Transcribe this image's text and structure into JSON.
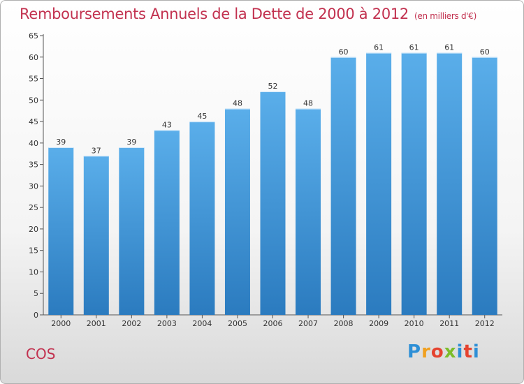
{
  "title": "Remboursements Annuels de la Dette de 2000 à 2012",
  "unit": "(en milliers d'€)",
  "commune": "COS",
  "logo": [
    "P",
    "r",
    "o",
    "x",
    "i",
    "t",
    "i"
  ],
  "colors": {
    "title": "#c2314f",
    "bar_top": "#5aaeea",
    "bar_bottom": "#2b7bbf"
  },
  "chart_data": {
    "type": "bar",
    "categories": [
      "2000",
      "2001",
      "2002",
      "2003",
      "2004",
      "2005",
      "2006",
      "2007",
      "2008",
      "2009",
      "2010",
      "2011",
      "2012"
    ],
    "values": [
      39,
      37,
      39,
      43,
      45,
      48,
      52,
      48,
      60,
      61,
      61,
      61,
      60
    ],
    "ylim": [
      0,
      65
    ],
    "yticks": [
      0,
      5,
      10,
      15,
      20,
      25,
      30,
      35,
      40,
      45,
      50,
      55,
      60,
      65
    ],
    "grid": false,
    "legend": "none"
  }
}
